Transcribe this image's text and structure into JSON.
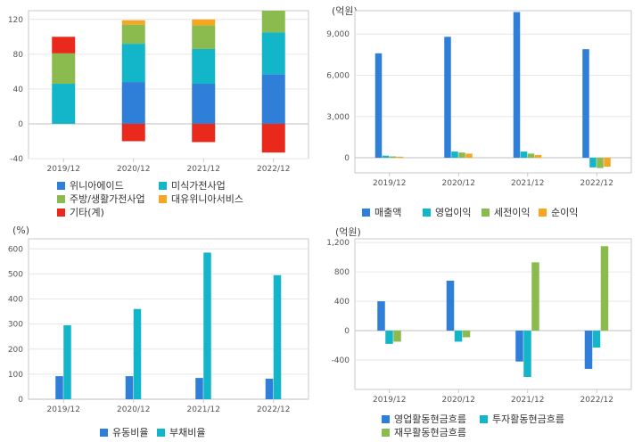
{
  "colors": {
    "blue": "#2f7ed8",
    "cyan": "#13b5c9",
    "green": "#8bbb4f",
    "orange": "#f5a623",
    "red": "#e8291c"
  },
  "chart_data": [
    {
      "id": "segment",
      "type": "bar",
      "stacked": true,
      "unit": "",
      "categories": [
        "2019/12",
        "2020/12",
        "2021/12",
        "2022/12"
      ],
      "ylim": [
        -40,
        130
      ],
      "yticks": [
        -40,
        0,
        40,
        80,
        120
      ],
      "series": [
        {
          "name": "위니아에이드",
          "color": "blue",
          "values": [
            0,
            48,
            46,
            57
          ]
        },
        {
          "name": "미식가전사업",
          "color": "cyan",
          "values": [
            46,
            44,
            40,
            48
          ]
        },
        {
          "name": "주방/생활가전사업",
          "color": "green",
          "values": [
            35,
            22,
            27,
            25
          ]
        },
        {
          "name": "대유위니아서비스",
          "color": "orange",
          "values": [
            0,
            5,
            7,
            8
          ]
        },
        {
          "name": "기타(계)",
          "color": "red",
          "values": [
            19,
            -20,
            -21,
            -33
          ]
        }
      ]
    },
    {
      "id": "income",
      "type": "bar",
      "unit": "(억원)",
      "categories": [
        "2019/12",
        "2020/12",
        "2021/12",
        "2022/12"
      ],
      "ylim": [
        -1100,
        10700
      ],
      "yticks": [
        0,
        3000,
        6000,
        9000
      ],
      "tick_labels": [
        "0",
        "3,000",
        "6,000",
        "9,000"
      ],
      "series": [
        {
          "name": "매출액",
          "color": "blue",
          "values": [
            7600,
            8800,
            10600,
            7900
          ]
        },
        {
          "name": "영업이익",
          "color": "cyan",
          "values": [
            150,
            450,
            450,
            -700
          ]
        },
        {
          "name": "세전이익",
          "color": "green",
          "values": [
            100,
            380,
            300,
            -750
          ]
        },
        {
          "name": "순이익",
          "color": "orange",
          "values": [
            80,
            300,
            200,
            -650
          ]
        }
      ]
    },
    {
      "id": "ratio",
      "type": "bar",
      "unit": "(%)",
      "categories": [
        "2019/12",
        "2020/12",
        "2021/12",
        "2022/12"
      ],
      "ylim": [
        0,
        640
      ],
      "yticks": [
        0,
        100,
        200,
        300,
        400,
        500,
        600
      ],
      "series": [
        {
          "name": "유동비율",
          "color": "blue",
          "values": [
            92,
            92,
            85,
            82
          ]
        },
        {
          "name": "부채비율",
          "color": "cyan",
          "values": [
            295,
            360,
            585,
            495
          ]
        }
      ]
    },
    {
      "id": "cashflow",
      "type": "bar",
      "unit": "(억원)",
      "categories": [
        "2019/12",
        "2020/12",
        "2021/12",
        "2022/12"
      ],
      "ylim": [
        -800,
        1250
      ],
      "yticks": [
        -400,
        0,
        400,
        800,
        1200
      ],
      "tick_labels": [
        "-400",
        "0",
        "400",
        "800",
        "1,200"
      ],
      "series": [
        {
          "name": "영업활동현금흐름",
          "color": "blue",
          "values": [
            400,
            680,
            -420,
            -520
          ]
        },
        {
          "name": "투자활동현금흐름",
          "color": "cyan",
          "values": [
            -180,
            -150,
            -630,
            -230
          ]
        },
        {
          "name": "재무활동현금흐름",
          "color": "green",
          "values": [
            -150,
            -90,
            930,
            1150
          ]
        }
      ]
    }
  ]
}
